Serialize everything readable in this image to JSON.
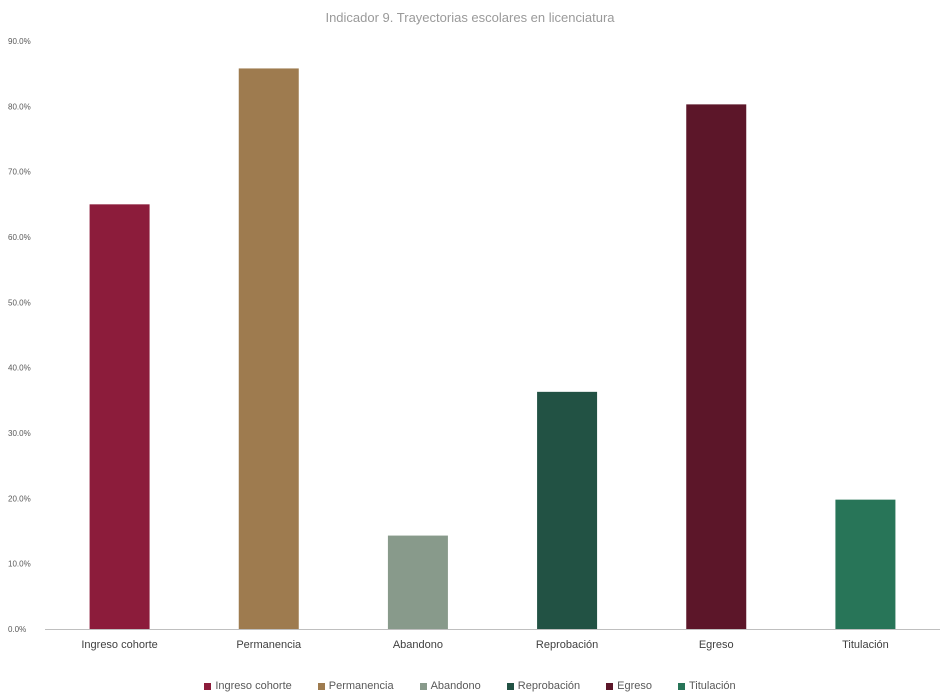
{
  "chart_data": {
    "type": "bar",
    "title": "Indicador 9. Trayectorias escolares en licenciatura",
    "categories": [
      "Ingreso cohorte",
      "Permanencia",
      "Abandono",
      "Reprobación",
      "Egreso",
      "Titulación"
    ],
    "values": [
      65.0,
      85.8,
      14.3,
      36.3,
      80.3,
      19.8
    ],
    "colors": [
      "#8c1c3b",
      "#9e7b4f",
      "#889a8b",
      "#225244",
      "#5c1629",
      "#287558"
    ],
    "ylim": [
      0,
      90
    ],
    "y_ticks": [
      "0.0%",
      "10.0%",
      "20.0%",
      "30.0%",
      "40.0%",
      "50.0%",
      "60.0%",
      "70.0%",
      "80.0%",
      "90.0%"
    ],
    "xlabel": "",
    "ylabel": "",
    "grid": false,
    "legend_position": "bottom"
  }
}
